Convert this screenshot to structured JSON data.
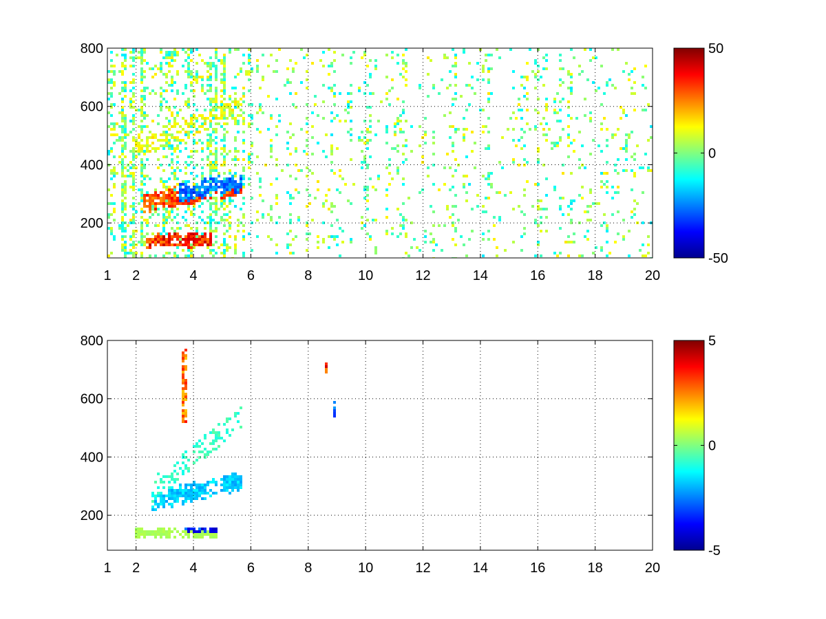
{
  "chart_data": [
    {
      "type": "heatmap",
      "title": "",
      "xlabel": "",
      "ylabel": "",
      "xlim": [
        1,
        20
      ],
      "ylim": [
        80,
        800
      ],
      "x_ticks": [
        1,
        2,
        4,
        6,
        8,
        10,
        12,
        14,
        16,
        18,
        20
      ],
      "x_tick_labels": [
        "1",
        "2",
        "4",
        "6",
        "8",
        "10",
        "12",
        "14",
        "16",
        "18",
        "20"
      ],
      "y_ticks": [
        200,
        400,
        600,
        800
      ],
      "y_tick_labels": [
        "200",
        "400",
        "600",
        "800"
      ],
      "grid": true,
      "colormap": "jet",
      "colorbar": {
        "min": -50,
        "max": 50,
        "ticks": [
          50,
          0,
          -50
        ],
        "tick_labels": [
          "50",
          "0",
          "-50"
        ]
      },
      "features": [
        {
          "x_range": [
            2.3,
            4.6
          ],
          "y_center": 140,
          "y_halfwidth": 22,
          "value": 40
        },
        {
          "x_range": [
            2.2,
            5.7
          ],
          "y_start": 265,
          "y_end": 330,
          "value": 35
        },
        {
          "x_range": [
            3.5,
            5.7
          ],
          "y_start": 300,
          "y_end": 340,
          "value": -30
        },
        {
          "x_range": [
            2.0,
            5.8
          ],
          "y_upper_start": 480,
          "y_upper_end": 620,
          "value": 15
        }
      ],
      "background_value_range": [
        -15,
        15
      ]
    },
    {
      "type": "heatmap",
      "title": "",
      "xlabel": "",
      "ylabel": "",
      "xlim": [
        1,
        20
      ],
      "ylim": [
        80,
        800
      ],
      "x_ticks": [
        1,
        2,
        4,
        6,
        8,
        10,
        12,
        14,
        16,
        18,
        20
      ],
      "x_tick_labels": [
        "1",
        "2",
        "4",
        "6",
        "8",
        "10",
        "12",
        "14",
        "16",
        "18",
        "20"
      ],
      "y_ticks": [
        200,
        400,
        600,
        800
      ],
      "y_tick_labels": [
        "200",
        "400",
        "600",
        "800"
      ],
      "grid": true,
      "colormap": "jet",
      "colorbar": {
        "min": -5,
        "max": 5,
        "ticks": [
          5,
          0,
          -5
        ],
        "tick_labels": [
          "5",
          "0",
          "-5"
        ]
      },
      "features": [
        {
          "x_range": [
            2.5,
            5.7
          ],
          "y_start": 245,
          "y_end": 320,
          "value": -2
        },
        {
          "x_range": [
            2.5,
            5.7
          ],
          "y_upper_start": 300,
          "y_upper_end": 560,
          "value": -1
        },
        {
          "x_range": [
            2.0,
            4.8
          ],
          "y_center": 140,
          "y_halfwidth": 15,
          "value": 0.5
        },
        {
          "x_range": [
            3.6,
            4.8
          ],
          "y_center": 152,
          "y_halfwidth": 8,
          "value": -4
        },
        {
          "x_range": [
            3.55,
            3.75
          ],
          "y_range": [
            520,
            770
          ],
          "value": 3
        },
        {
          "x_range": [
            8.6,
            8.7
          ],
          "y_range": [
            680,
            730
          ],
          "value": 4
        },
        {
          "x_range": [
            8.9,
            9.0
          ],
          "y_range": [
            540,
            590
          ],
          "value": -3
        }
      ]
    }
  ]
}
